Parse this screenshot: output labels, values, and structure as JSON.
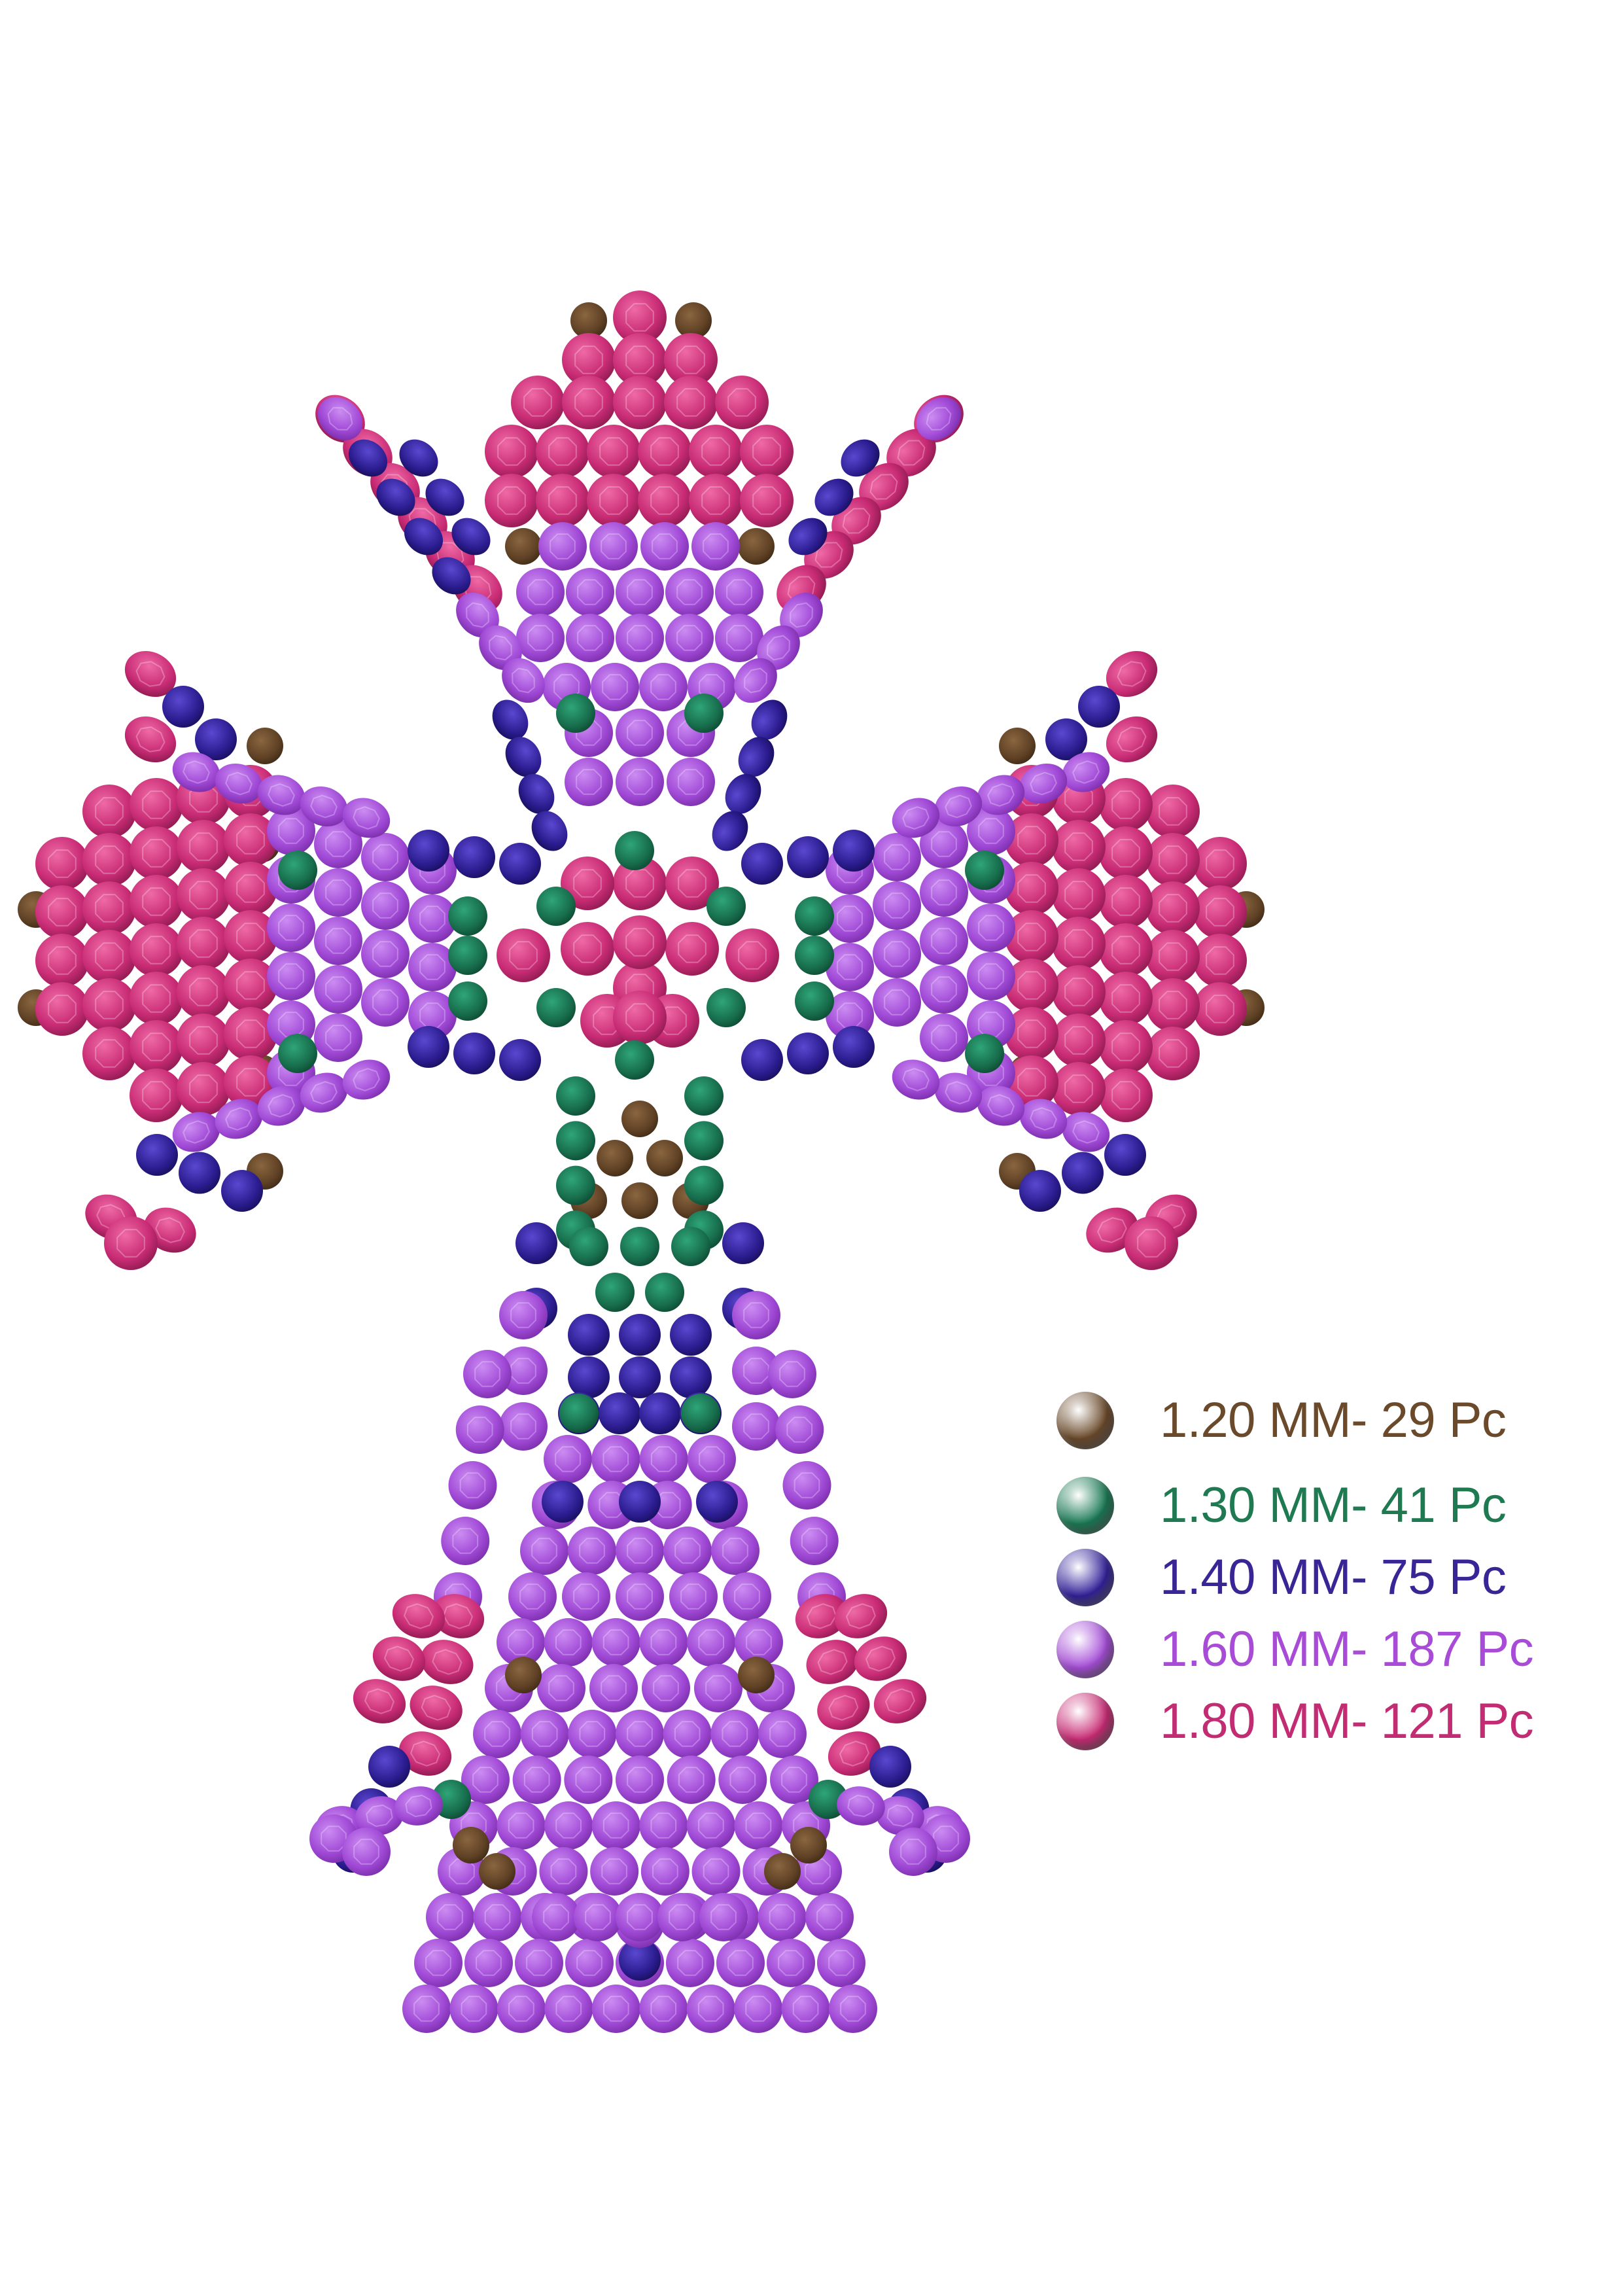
{
  "colors": {
    "size_120": "#6b4a2b",
    "size_130": "#1a7a55",
    "size_140": "#32229a",
    "size_160": "#a64ed8",
    "size_180": "#c92c75"
  },
  "legend": [
    {
      "label": "1.20 MM- 29 Pc",
      "color": "#6b4a2b",
      "text_color": "#6b4a2b"
    },
    {
      "label": "1.30 MM- 41 Pc",
      "color": "#1a7a55",
      "text_color": "#1f7a52"
    },
    {
      "label": "1.40 MM- 75 Pc",
      "color": "#32229a",
      "text_color": "#3a2596"
    },
    {
      "label": "1.60 MM- 187 Pc",
      "color": "#a64ed8",
      "text_color": "#a84cd8"
    },
    {
      "label": "1.80 MM- 121 Pc",
      "color": "#c92c75",
      "text_color": "#c22c73"
    }
  ]
}
